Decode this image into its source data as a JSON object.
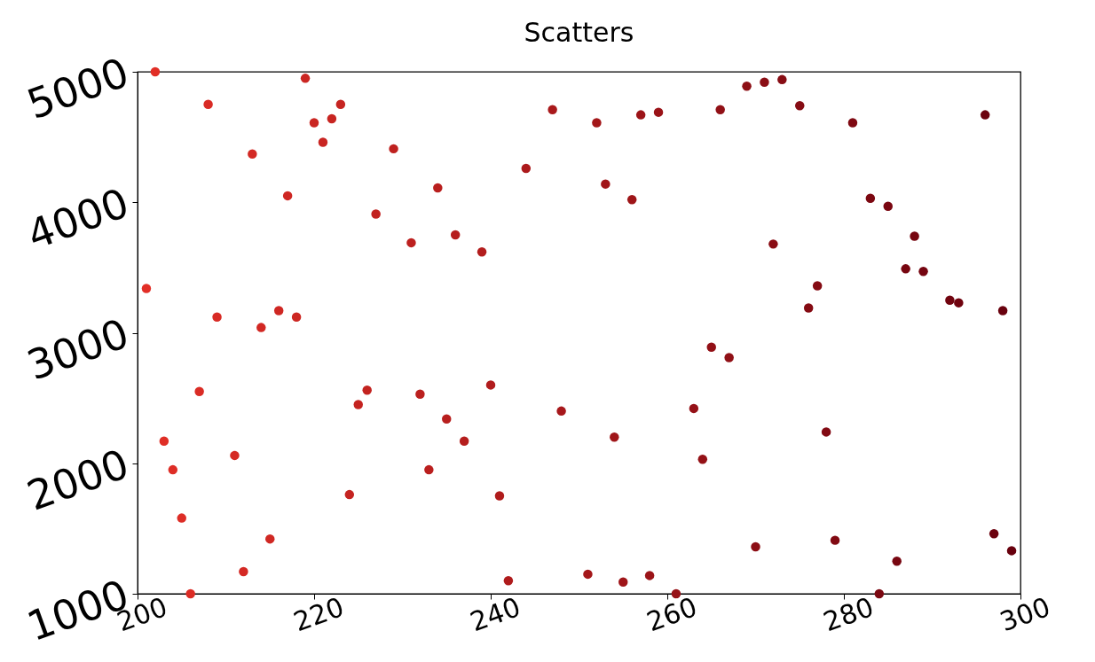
{
  "chart_data": {
    "type": "scatter",
    "title": "Scatters",
    "x": [
      201,
      202,
      203,
      204,
      205,
      206,
      207,
      208,
      209,
      211,
      212,
      213,
      214,
      215,
      216,
      217,
      218,
      219,
      220,
      221,
      222,
      223,
      224,
      225,
      226,
      227,
      229,
      231,
      232,
      233,
      234,
      235,
      236,
      237,
      239,
      240,
      241,
      242,
      244,
      247,
      248,
      251,
      252,
      253,
      254,
      255,
      256,
      257,
      258,
      259,
      261,
      263,
      264,
      265,
      266,
      267,
      269,
      270,
      271,
      272,
      273,
      275,
      276,
      277,
      278,
      279,
      281,
      283,
      284,
      285,
      286,
      287,
      288,
      289,
      292,
      293,
      296,
      297,
      298,
      299
    ],
    "values": [
      3340,
      5000,
      2170,
      1950,
      1580,
      1000,
      2550,
      4750,
      3120,
      2060,
      1170,
      4370,
      3040,
      1420,
      3170,
      4050,
      3120,
      4950,
      4610,
      4460,
      4640,
      4750,
      1760,
      2450,
      2560,
      3910,
      4410,
      3690,
      2530,
      1950,
      4110,
      2340,
      3750,
      2170,
      3620,
      2600,
      1750,
      1100,
      4260,
      4710,
      2400,
      1150,
      4610,
      4140,
      2200,
      1090,
      4020,
      4670,
      1140,
      4690,
      1000,
      2420,
      2030,
      2890,
      4710,
      2810,
      4890,
      1360,
      4920,
      3680,
      4940,
      4740,
      3190,
      3360,
      2240,
      1410,
      4610,
      4030,
      1000,
      3970,
      1250,
      3490,
      3740,
      3470,
      3250,
      3230,
      4670,
      1460,
      3170,
      1330
    ],
    "colors": [
      "#e22f27",
      "#e12e26",
      "#df2e26",
      "#de2d26",
      "#dd2d26",
      "#dc2c25",
      "#da2c25",
      "#d92b25",
      "#d82b25",
      "#d52a24",
      "#d42924",
      "#d32924",
      "#d22823",
      "#d02823",
      "#cf2723",
      "#ce2723",
      "#cd2722",
      "#cb2622",
      "#ca2622",
      "#c92522",
      "#c82521",
      "#c62421",
      "#c52421",
      "#c42320",
      "#c32320",
      "#c22220",
      "#bf211f",
      "#bd201f",
      "#bb201f",
      "#ba1f1e",
      "#b91f1e",
      "#b81f1e",
      "#b61e1e",
      "#b51e1d",
      "#b31d1d",
      "#b11c1d",
      "#b01c1c",
      "#af1b1c",
      "#ac1a1c",
      "#a9191b",
      "#a7181b",
      "#a4171a",
      "#a31719",
      "#a11619",
      "#a01619",
      "#9f1519",
      "#9e1518",
      "#9c1418",
      "#9b1418",
      "#9a1318",
      "#971217",
      "#951117",
      "#941116",
      "#921016",
      "#911016",
      "#901016",
      "#8d0f15",
      "#8c0e15",
      "#8b0e15",
      "#8a0d14",
      "#880d14",
      "#860c14",
      "#850b13",
      "#840b13",
      "#820a13",
      "#810a12",
      "#7f0912",
      "#7c0811",
      "#7b0811",
      "#7a0711",
      "#780711",
      "#770610",
      "#760610",
      "#750510",
      "#71040f",
      "#70030f",
      "#6c020e",
      "#6b010e",
      "#69010e",
      "#68000d"
    ],
    "xlim": [
      200,
      300
    ],
    "xticks": [
      200,
      220,
      240,
      260,
      280,
      300
    ],
    "ylim": [
      1000,
      5000
    ],
    "yticks": [
      1000,
      2000,
      3000,
      4000,
      5000
    ],
    "grid": false,
    "legend": false,
    "marker": "circle"
  }
}
